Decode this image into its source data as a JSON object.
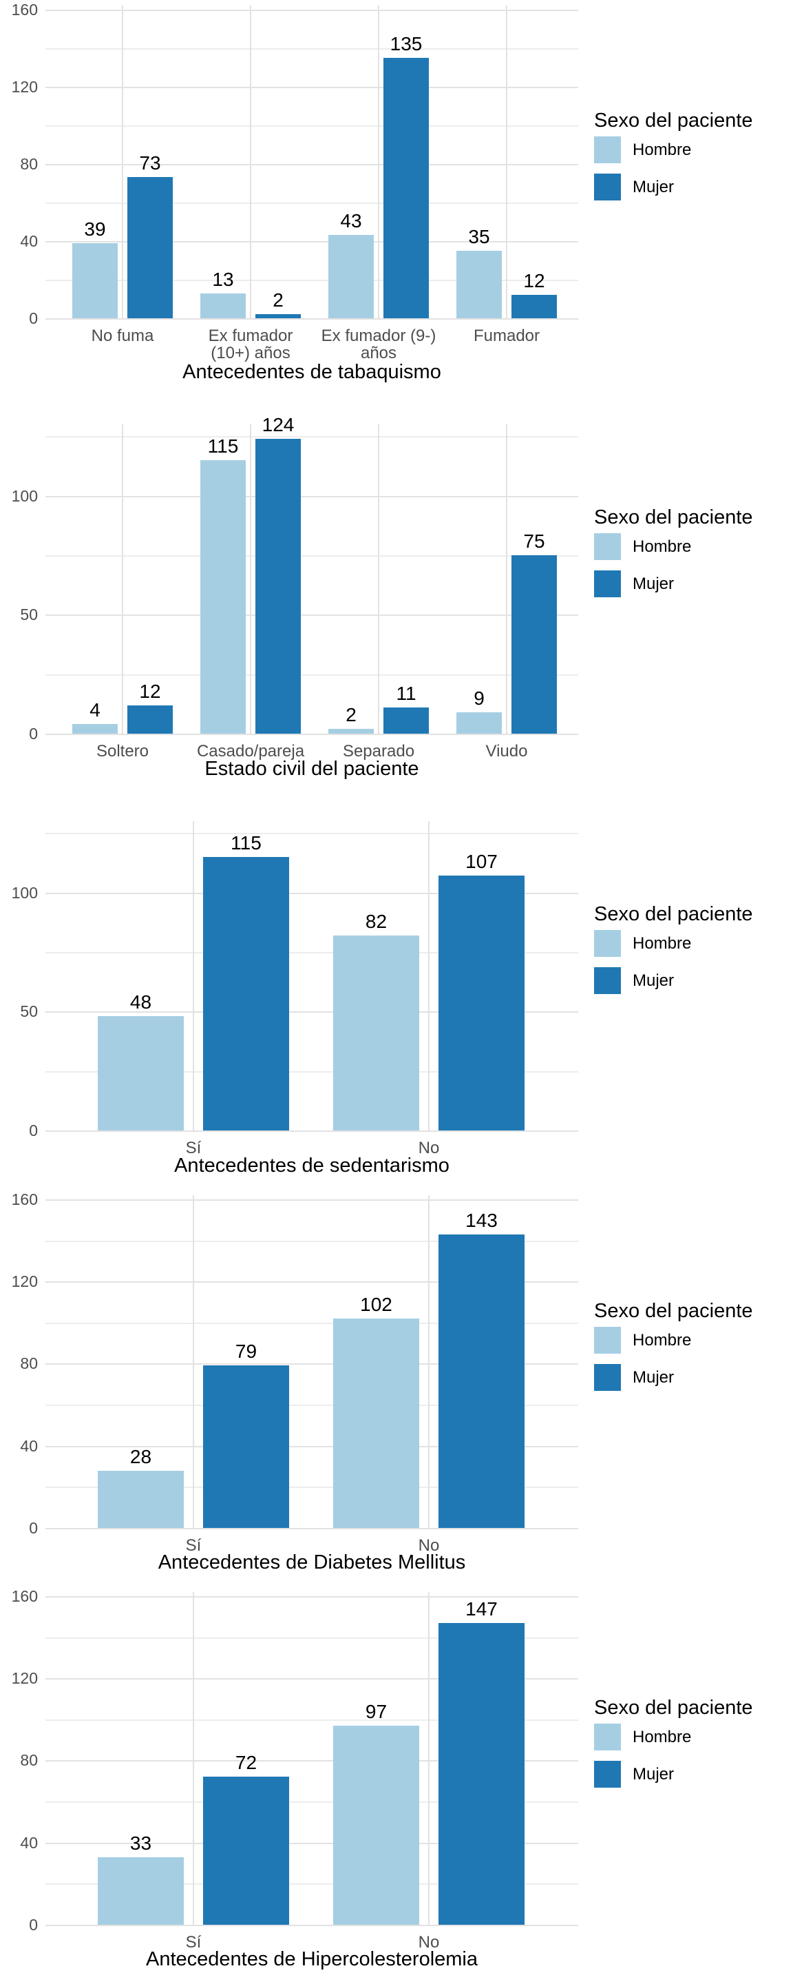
{
  "legend": {
    "title": "Sexo del paciente",
    "series": [
      {
        "name": "Hombre",
        "color": "#A6CEE3"
      },
      {
        "name": "Mujer",
        "color": "#1F78B4"
      }
    ],
    "position": "right"
  },
  "colors": {
    "hombre": "#A6CEE3",
    "mujer": "#1F78B4",
    "grid_major": "#E2E2E2",
    "grid_minor": "#EDEDED",
    "axis_text": "#4D4D4D",
    "label_text": "#000000",
    "background": "#FFFFFF"
  },
  "chart_data": [
    {
      "type": "bar",
      "title": "",
      "xlabel": "Antecedentes de tabaquismo",
      "ylabel": "",
      "categories": [
        "No fuma",
        "Ex fumador\n(10+) años",
        "Ex fumador (9-)\naños",
        "Fumador"
      ],
      "series": [
        {
          "name": "Hombre",
          "values": [
            39,
            13,
            43,
            35
          ]
        },
        {
          "name": "Mujer",
          "values": [
            73,
            2,
            135,
            12
          ]
        }
      ],
      "yticks": [
        0,
        40,
        80,
        120,
        160
      ],
      "yminor": [
        20,
        60,
        100,
        140
      ],
      "ylim": [
        0,
        162
      ],
      "grid": true,
      "legend_position": "right"
    },
    {
      "type": "bar",
      "title": "",
      "xlabel": "Estado civil del paciente",
      "ylabel": "",
      "categories": [
        "Soltero",
        "Casado/pareja",
        "Separado",
        "Viudo"
      ],
      "series": [
        {
          "name": "Hombre",
          "values": [
            4,
            115,
            2,
            9
          ]
        },
        {
          "name": "Mujer",
          "values": [
            12,
            124,
            11,
            75
          ]
        }
      ],
      "yticks": [
        0,
        50,
        100
      ],
      "yminor": [
        25,
        75,
        125
      ],
      "ylim": [
        0,
        130
      ],
      "grid": true,
      "legend_position": "right"
    },
    {
      "type": "bar",
      "title": "",
      "xlabel": "Antecedentes de sedentarismo",
      "ylabel": "",
      "categories": [
        "Sí",
        "No"
      ],
      "series": [
        {
          "name": "Hombre",
          "values": [
            48,
            82
          ]
        },
        {
          "name": "Mujer",
          "values": [
            115,
            107
          ]
        }
      ],
      "yticks": [
        0,
        50,
        100
      ],
      "yminor": [
        25,
        75,
        125
      ],
      "ylim": [
        0,
        130
      ],
      "grid": true,
      "legend_position": "right"
    },
    {
      "type": "bar",
      "title": "",
      "xlabel": "Antecedentes de Diabetes Mellitus",
      "ylabel": "",
      "categories": [
        "Sí",
        "No"
      ],
      "series": [
        {
          "name": "Hombre",
          "values": [
            28,
            102
          ]
        },
        {
          "name": "Mujer",
          "values": [
            79,
            143
          ]
        }
      ],
      "yticks": [
        0,
        40,
        80,
        120,
        160
      ],
      "yminor": [
        20,
        60,
        100,
        140
      ],
      "ylim": [
        0,
        162
      ],
      "grid": true,
      "legend_position": "right"
    },
    {
      "type": "bar",
      "title": "",
      "xlabel": "Antecedentes de Hipercolesterolemia",
      "ylabel": "",
      "categories": [
        "Sí",
        "No"
      ],
      "series": [
        {
          "name": "Hombre",
          "values": [
            33,
            97
          ]
        },
        {
          "name": "Mujer",
          "values": [
            72,
            147
          ]
        }
      ],
      "yticks": [
        0,
        40,
        80,
        120,
        160
      ],
      "yminor": [
        20,
        60,
        100,
        140
      ],
      "ylim": [
        0,
        162
      ],
      "grid": true,
      "legend_position": "right"
    }
  ]
}
